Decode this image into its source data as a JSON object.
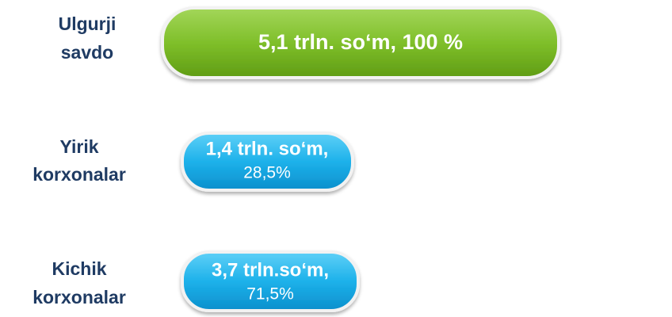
{
  "rows": [
    {
      "label": [
        "Ulgurji",
        "savdo"
      ],
      "value": [
        "5,1 trln. so‘m, 100 %"
      ]
    },
    {
      "label": [
        "Yirik",
        "korxonalar"
      ],
      "value": [
        "1,4 trln. so‘m,",
        "28,5%"
      ]
    },
    {
      "label": [
        "Kichik",
        "korxonalar"
      ],
      "value": [
        "3,7  trln.so‘m,",
        "71,5%"
      ]
    }
  ]
}
